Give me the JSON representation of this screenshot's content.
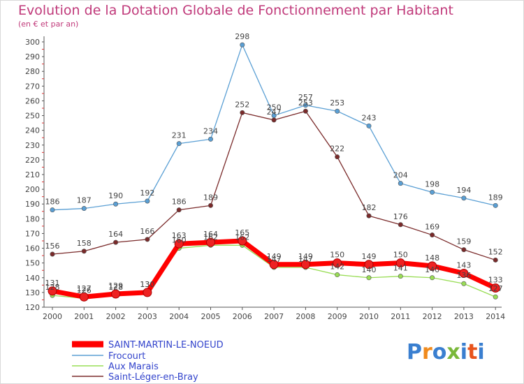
{
  "header": {
    "title": "Evolution de la Dotation Globale de Fonctionnement par Habitant",
    "subtitle": "(en € et par an)"
  },
  "chart_data": {
    "type": "line",
    "x": [
      "2000",
      "2001",
      "2002",
      "2003",
      "2004",
      "2005",
      "2006",
      "2007",
      "2008",
      "2009",
      "2010",
      "2011",
      "2012",
      "2013",
      "2014"
    ],
    "ylim": [
      120,
      300
    ],
    "yticks": [
      120,
      130,
      140,
      150,
      160,
      170,
      180,
      190,
      200,
      210,
      220,
      230,
      240,
      250,
      260,
      270,
      280,
      290,
      300
    ],
    "grid": false,
    "legend_position": "bottom-left",
    "series": [
      {
        "name": "SAINT-MARTIN-LE-NOEUD",
        "color": "#ff0000",
        "values": [
          131,
          127,
          129,
          130,
          163,
          164,
          165,
          149,
          149,
          150,
          149,
          150,
          148,
          143,
          133
        ]
      },
      {
        "name": "Frocourt",
        "color": "#5a9fd4",
        "values": [
          186,
          187,
          190,
          192,
          231,
          234,
          298,
          250,
          257,
          253,
          243,
          204,
          198,
          194,
          189
        ]
      },
      {
        "name": "Aux Marais",
        "color": "#99dd55",
        "values": [
          128,
          126,
          128,
          130,
          160,
          162,
          162,
          147,
          147,
          142,
          140,
          141,
          140,
          136,
          127
        ]
      },
      {
        "name": "Saint-Léger-en-Bray",
        "color": "#7a2a2a",
        "values": [
          156,
          158,
          164,
          166,
          186,
          189,
          252,
          247,
          253,
          222,
          182,
          176,
          169,
          159,
          152
        ]
      }
    ]
  },
  "logo": {
    "text": "Proxiti",
    "colors": [
      "#3a7fd0",
      "#f08a1c",
      "#3a7fd0",
      "#7ab83a",
      "#3a7fd0",
      "#e8541c",
      "#3a7fd0"
    ]
  }
}
